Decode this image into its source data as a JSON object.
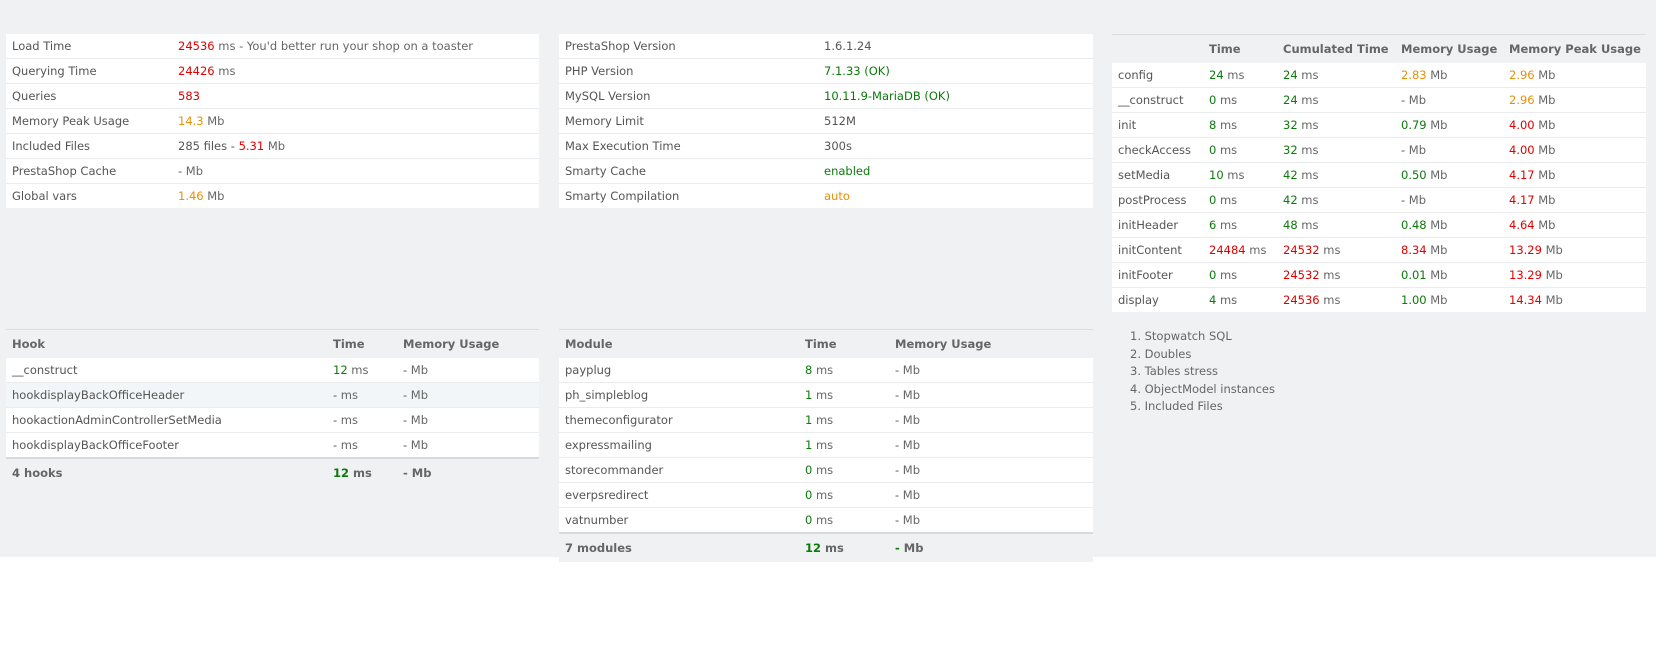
{
  "summary": [
    {
      "label": "Load Time",
      "value": "24536",
      "value_color": "red",
      "unit": "ms - You'd better run your shop on a toaster"
    },
    {
      "label": "Querying Time",
      "value": "24426",
      "value_color": "red",
      "unit": "ms"
    },
    {
      "label": "Queries",
      "value": "583",
      "value_color": "red",
      "unit": ""
    },
    {
      "label": "Memory Peak Usage",
      "value": "14.3",
      "value_color": "orange",
      "unit": "Mb"
    },
    {
      "label": "Included Files",
      "value": "285 files - ",
      "value_color": "plain",
      "unit": "",
      "extra": "5.31",
      "extra_color": "red",
      "extra_unit": "Mb"
    },
    {
      "label": "PrestaShop Cache",
      "value": "-",
      "value_color": "plain",
      "unit": "Mb"
    },
    {
      "label": "Global vars",
      "value": "1.46",
      "value_color": "orange",
      "unit": "Mb"
    }
  ],
  "config": [
    {
      "label": "PrestaShop Version",
      "value": "1.6.1.24",
      "color": "plain"
    },
    {
      "label": "PHP Version",
      "value": "7.1.33 (OK)",
      "color": "green"
    },
    {
      "label": "MySQL Version",
      "value": "10.11.9-MariaDB (OK)",
      "color": "green"
    },
    {
      "label": "Memory Limit",
      "value": "512M",
      "color": "plain"
    },
    {
      "label": "Max Execution Time",
      "value": "300s",
      "color": "plain"
    },
    {
      "label": "Smarty Cache",
      "value": "enabled",
      "color": "green"
    },
    {
      "label": "Smarty Compilation",
      "value": "auto",
      "color": "orange"
    }
  ],
  "steps": {
    "headers": [
      "",
      "Time",
      "Cumulated Time",
      "Memory Usage",
      "Memory Peak Usage"
    ],
    "rows": [
      {
        "name": "config",
        "time": "24",
        "time_c": "green",
        "cum": "24",
        "cum_c": "green",
        "mem": "2.83",
        "mem_c": "orange",
        "peak": "2.96",
        "peak_c": "orange"
      },
      {
        "name": "__construct",
        "time": "0",
        "time_c": "green",
        "cum": "24",
        "cum_c": "green",
        "mem": "-",
        "mem_c": "plain",
        "peak": "2.96",
        "peak_c": "orange"
      },
      {
        "name": "init",
        "time": "8",
        "time_c": "green",
        "cum": "32",
        "cum_c": "green",
        "mem": "0.79",
        "mem_c": "green",
        "peak": "4.00",
        "peak_c": "red"
      },
      {
        "name": "checkAccess",
        "time": "0",
        "time_c": "green",
        "cum": "32",
        "cum_c": "green",
        "mem": "-",
        "mem_c": "plain",
        "peak": "4.00",
        "peak_c": "red"
      },
      {
        "name": "setMedia",
        "time": "10",
        "time_c": "green",
        "cum": "42",
        "cum_c": "green",
        "mem": "0.50",
        "mem_c": "green",
        "peak": "4.17",
        "peak_c": "red"
      },
      {
        "name": "postProcess",
        "time": "0",
        "time_c": "green",
        "cum": "42",
        "cum_c": "green",
        "mem": "-",
        "mem_c": "plain",
        "peak": "4.17",
        "peak_c": "red"
      },
      {
        "name": "initHeader",
        "time": "6",
        "time_c": "green",
        "cum": "48",
        "cum_c": "green",
        "mem": "0.48",
        "mem_c": "green",
        "peak": "4.64",
        "peak_c": "red"
      },
      {
        "name": "initContent",
        "time": "24484",
        "time_c": "red",
        "cum": "24532",
        "cum_c": "red",
        "mem": "8.34",
        "mem_c": "red",
        "peak": "13.29",
        "peak_c": "red"
      },
      {
        "name": "initFooter",
        "time": "0",
        "time_c": "green",
        "cum": "24532",
        "cum_c": "red",
        "mem": "0.01",
        "mem_c": "green",
        "peak": "13.29",
        "peak_c": "red"
      },
      {
        "name": "display",
        "time": "4",
        "time_c": "green",
        "cum": "24536",
        "cum_c": "red",
        "mem": "1.00",
        "mem_c": "green",
        "peak": "14.34",
        "peak_c": "red"
      }
    ]
  },
  "hooks": {
    "headers": [
      "Hook",
      "Time",
      "Memory Usage"
    ],
    "rows": [
      {
        "name": "__construct",
        "time": "12",
        "time_c": "green",
        "mem": "-"
      },
      {
        "name": "hookdisplayBackOfficeHeader",
        "time": "-",
        "time_c": "plain",
        "mem": "-"
      },
      {
        "name": "hookactionAdminControllerSetMedia",
        "time": "-",
        "time_c": "plain",
        "mem": "-"
      },
      {
        "name": "hookdisplayBackOfficeFooter",
        "time": "-",
        "time_c": "plain",
        "mem": "-"
      }
    ],
    "footer": {
      "name": "4 hooks",
      "time": "12",
      "mem": "-"
    }
  },
  "modules": {
    "headers": [
      "Module",
      "Time",
      "Memory Usage"
    ],
    "rows": [
      {
        "name": "payplug",
        "time": "8",
        "mem": "-"
      },
      {
        "name": "ph_simpleblog",
        "time": "1",
        "mem": "-"
      },
      {
        "name": "themeconfigurator",
        "time": "1",
        "mem": "-"
      },
      {
        "name": "expressmailing",
        "time": "1",
        "mem": "-"
      },
      {
        "name": "storecommander",
        "time": "0",
        "mem": "-"
      },
      {
        "name": "everpsredirect",
        "time": "0",
        "mem": "-"
      },
      {
        "name": "vatnumber",
        "time": "0",
        "mem": "-"
      }
    ],
    "footer": {
      "name": "7 modules",
      "time": "12",
      "mem": "-"
    }
  },
  "units": {
    "ms": "ms",
    "mb": "Mb"
  },
  "links": [
    "1. Stopwatch SQL",
    "2. Doubles",
    "3. Tables stress",
    "4. ObjectModel instances",
    "5. Included Files"
  ]
}
